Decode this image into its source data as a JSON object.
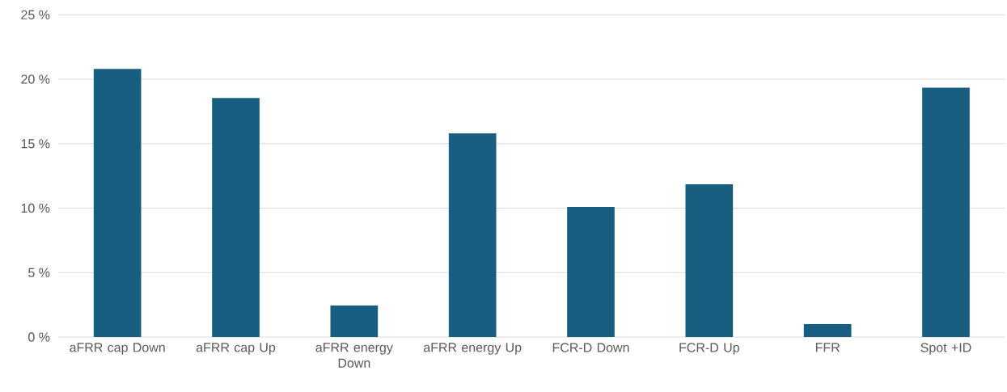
{
  "chart_data": {
    "type": "bar",
    "categories": [
      "aFRR cap Down",
      "aFRR cap Up",
      "aFRR energy Down",
      "aFRR energy Up",
      "FCR-D Down",
      "FCR-D Up",
      "FFR",
      "Spot +ID"
    ],
    "values": [
      20.8,
      18.55,
      2.45,
      15.8,
      10.1,
      11.85,
      1.0,
      19.35
    ],
    "color": "#175e80",
    "ylim": [
      0,
      25
    ],
    "yticks": [
      {
        "value": 0,
        "label": "0 %"
      },
      {
        "value": 5,
        "label": "5 %"
      },
      {
        "value": 10,
        "label": "10 %"
      },
      {
        "value": 15,
        "label": "15 %"
      },
      {
        "value": 20,
        "label": "20 %"
      },
      {
        "value": 25,
        "label": "25 %"
      }
    ],
    "grid": "y"
  }
}
